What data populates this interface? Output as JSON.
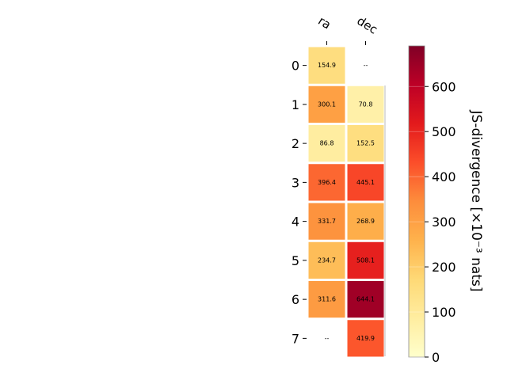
{
  "chart_data": {
    "type": "heatmap",
    "title": "",
    "columns": [
      "ra",
      "dec"
    ],
    "rows": [
      "0",
      "1",
      "2",
      "3",
      "4",
      "5",
      "6",
      "7"
    ],
    "values": [
      [
        154.9,
        null
      ],
      [
        300.1,
        70.8
      ],
      [
        86.8,
        152.5
      ],
      [
        396.4,
        445.1
      ],
      [
        331.7,
        268.9
      ],
      [
        234.7,
        508.1
      ],
      [
        311.6,
        644.1
      ],
      [
        null,
        419.9
      ]
    ],
    "cell_labels": [
      [
        "154.9",
        "--"
      ],
      [
        "300.1",
        "70.8"
      ],
      [
        "86.8",
        "152.5"
      ],
      [
        "396.4",
        "445.1"
      ],
      [
        "331.7",
        "268.9"
      ],
      [
        "234.7",
        "508.1"
      ],
      [
        "311.6",
        "644.1"
      ],
      [
        "--",
        "419.9"
      ]
    ],
    "colorbar": {
      "label": "JS-divergence [×10⁻³ nats]",
      "ticks": [
        "0",
        "100",
        "200",
        "300",
        "400",
        "500",
        "600"
      ],
      "tick_values": [
        0,
        100,
        200,
        300,
        400,
        500,
        600
      ],
      "range": [
        0,
        690
      ],
      "colormap": "YlOrRd"
    }
  }
}
